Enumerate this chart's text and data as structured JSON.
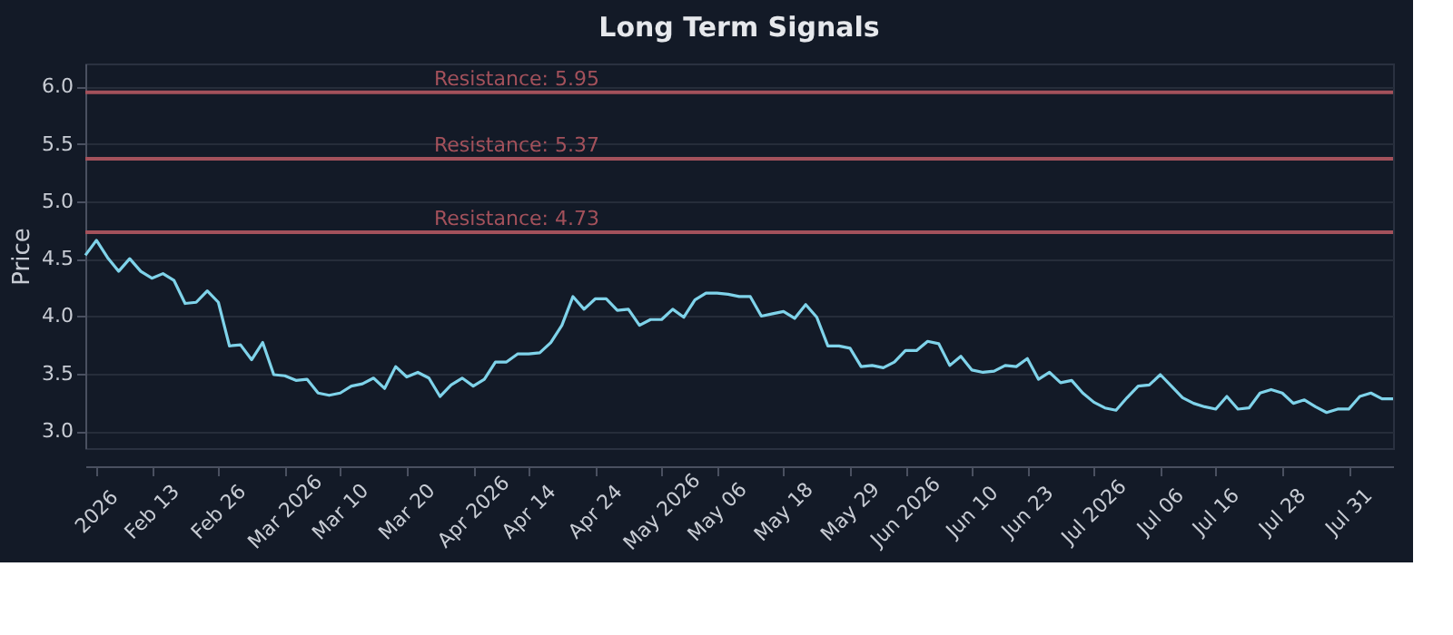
{
  "chart_data": {
    "type": "line",
    "title": "Long Term Signals",
    "ylabel": "Price",
    "categories": [
      null,
      "2026",
      null,
      null,
      null,
      null,
      "Feb 13",
      null,
      null,
      null,
      null,
      null,
      "Feb 26",
      null,
      null,
      null,
      null,
      null,
      "Mar 2026",
      null,
      null,
      null,
      null,
      "Mar 10",
      null,
      null,
      null,
      null,
      null,
      "Mar 20",
      null,
      null,
      null,
      null,
      null,
      "Apr 2026",
      null,
      null,
      null,
      null,
      "Apr 14",
      null,
      null,
      null,
      null,
      null,
      "Apr 24",
      null,
      null,
      null,
      null,
      null,
      "May 2026",
      null,
      null,
      null,
      null,
      "May 06",
      null,
      null,
      null,
      null,
      null,
      "May 18",
      null,
      null,
      null,
      null,
      null,
      "May 29",
      null,
      null,
      null,
      null,
      "Jun 2026",
      null,
      null,
      null,
      null,
      null,
      "Jun 10",
      null,
      null,
      null,
      null,
      "Jun 23",
      null,
      null,
      null,
      null,
      null,
      "Jul 2026",
      null,
      null,
      null,
      null,
      null,
      "Jul 06",
      null,
      null,
      null,
      null,
      "Jul 16",
      null,
      null,
      null,
      null,
      null,
      "Jul 28",
      null,
      null,
      null,
      null,
      null,
      "Jul 31",
      null,
      null,
      null,
      null
    ],
    "series": [
      {
        "color": "#7fd3ea",
        "values": [
          4.53,
          4.66,
          4.51,
          4.39,
          4.5,
          4.39,
          4.33,
          4.37,
          4.31,
          4.11,
          4.12,
          4.22,
          4.12,
          3.74,
          3.75,
          3.62,
          3.77,
          3.49,
          3.48,
          3.44,
          3.45,
          3.33,
          3.31,
          3.33,
          3.39,
          3.41,
          3.46,
          3.37,
          3.56,
          3.47,
          3.51,
          3.46,
          3.3,
          3.4,
          3.46,
          3.39,
          3.45,
          3.6,
          3.6,
          3.67,
          3.67,
          3.68,
          3.77,
          3.92,
          4.17,
          4.06,
          4.15,
          4.15,
          4.05,
          4.06,
          3.92,
          3.97,
          3.97,
          4.06,
          3.99,
          4.14,
          4.2,
          4.2,
          4.19,
          4.17,
          4.17,
          4.0,
          4.02,
          4.04,
          3.98,
          4.1,
          3.99,
          3.74,
          3.74,
          3.72,
          3.56,
          3.57,
          3.55,
          3.6,
          3.7,
          3.7,
          3.78,
          3.76,
          3.57,
          3.65,
          3.53,
          3.51,
          3.52,
          3.57,
          3.56,
          3.63,
          3.45,
          3.51,
          3.42,
          3.44,
          3.33,
          3.25,
          3.2,
          3.18,
          3.29,
          3.39,
          3.4,
          3.49,
          3.39,
          3.29,
          3.24,
          3.21,
          3.19,
          3.3,
          3.19,
          3.2,
          3.33,
          3.36,
          3.33,
          3.24,
          3.27,
          3.21,
          3.16,
          3.19,
          3.19,
          3.3,
          3.33,
          3.28,
          3.28
        ]
      }
    ],
    "ylim": [
      2.85,
      6.2
    ],
    "yticks": [
      {
        "value": 3,
        "label": "3.0"
      },
      {
        "value": 3.5,
        "label": "3.5"
      },
      {
        "value": 4,
        "label": "4.0"
      },
      {
        "value": 4.5,
        "label": "4.5"
      },
      {
        "value": 5,
        "label": "5.0"
      },
      {
        "value": 5.5,
        "label": "5.5"
      },
      {
        "value": 6,
        "label": "6.0"
      }
    ],
    "ref_lines": [
      {
        "axis": "y",
        "value": 5.95,
        "label": "Resistance: 5.95",
        "color": "#a3515b"
      },
      {
        "axis": "y",
        "value": 5.37,
        "label": "Resistance: 5.37",
        "color": "#a3515b"
      },
      {
        "axis": "y",
        "value": 4.73,
        "label": "Resistance: 4.73",
        "color": "#a3515b"
      }
    ],
    "grid": "y",
    "legend": false,
    "marker": "none",
    "line_style": "solid"
  }
}
